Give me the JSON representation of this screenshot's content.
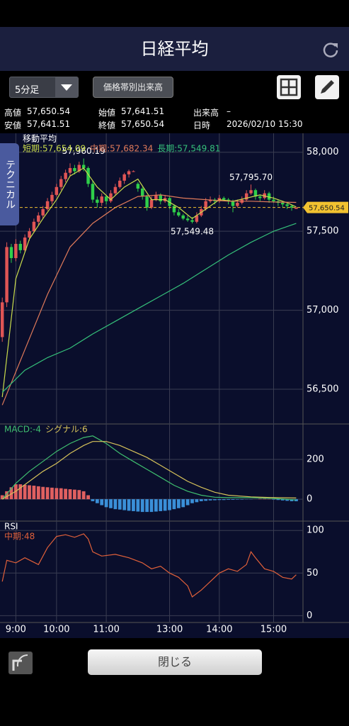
{
  "header": {
    "title": "日経平均"
  },
  "toolbar": {
    "period": "5分足",
    "volume_button": "価格帯別出来高"
  },
  "quote": {
    "rows": [
      [
        {
          "label": "高値",
          "value": "57,650.54"
        },
        {
          "label": "始値",
          "value": "57,641.51"
        },
        {
          "label": "出来高",
          "value": "–"
        }
      ],
      [
        {
          "label": "安値",
          "value": "57,641.51"
        },
        {
          "label": "終値",
          "value": "57,650.54"
        },
        {
          "label": "日時",
          "value": "2026/02/10 15:30"
        }
      ]
    ]
  },
  "side_tab": "テクニカル",
  "close_button": "閉じる",
  "chart_data": [
    {
      "type": "candlestick",
      "title": "移動平均",
      "up_color": "#e05555",
      "down_color": "#2fcf4a",
      "ohlc": [
        [
          56830,
          57080,
          56800,
          57050
        ],
        [
          57050,
          57430,
          57020,
          57400
        ],
        [
          57400,
          57420,
          57300,
          57330
        ],
        [
          57330,
          57450,
          57310,
          57420
        ],
        [
          57420,
          57440,
          57360,
          57380
        ],
        [
          57380,
          57480,
          57370,
          57460
        ],
        [
          57460,
          57520,
          57440,
          57500
        ],
        [
          57500,
          57580,
          57490,
          57560
        ],
        [
          57560,
          57620,
          57540,
          57600
        ],
        [
          57600,
          57660,
          57580,
          57640
        ],
        [
          57640,
          57710,
          57630,
          57690
        ],
        [
          57690,
          57750,
          57670,
          57730
        ],
        [
          57730,
          57800,
          57720,
          57780
        ],
        [
          57780,
          57850,
          57760,
          57830
        ],
        [
          57830,
          57890,
          57810,
          57870
        ],
        [
          57870,
          57930,
          57850,
          57900
        ],
        [
          57900,
          57920,
          57860,
          57880
        ],
        [
          57880,
          57940,
          57870,
          57920
        ],
        [
          57920,
          57960.19,
          57880,
          57900
        ],
        [
          57900,
          57910,
          57780,
          57800
        ],
        [
          57800,
          57820,
          57680,
          57700
        ],
        [
          57700,
          57720,
          57650,
          57680
        ],
        [
          57680,
          57740,
          57660,
          57720
        ],
        [
          57720,
          57730,
          57670,
          57690
        ],
        [
          57690,
          57760,
          57680,
          57740
        ],
        [
          57740,
          57800,
          57730,
          57780
        ],
        [
          57780,
          57840,
          57770,
          57820
        ],
        [
          57820,
          57870,
          57800,
          57860
        ],
        [
          57860,
          57890,
          57840,
          57880
        ],
        [
          57880,
          57885,
          57875,
          57880
        ],
        [
          57800,
          57810,
          57750,
          57770
        ],
        [
          57770,
          57780,
          57700,
          57720
        ],
        [
          57720,
          57730,
          57630,
          57650
        ],
        [
          57650,
          57720,
          57640,
          57700
        ],
        [
          57700,
          57750,
          57690,
          57730
        ],
        [
          57730,
          57740,
          57670,
          57690
        ],
        [
          57690,
          57730,
          57680,
          57710
        ],
        [
          57710,
          57720,
          57640,
          57660
        ],
        [
          57660,
          57670,
          57600,
          57620
        ],
        [
          57620,
          57640,
          57590,
          57600
        ],
        [
          57600,
          57610,
          57570,
          57580
        ],
        [
          57580,
          57600,
          57560,
          57570
        ],
        [
          57570,
          57590,
          57549.48,
          57560
        ],
        [
          57560,
          57620,
          57550,
          57600
        ],
        [
          57600,
          57660,
          57590,
          57640
        ],
        [
          57640,
          57710,
          57630,
          57690
        ],
        [
          57690,
          57720,
          57680,
          57700
        ],
        [
          57700,
          57710,
          57670,
          57690
        ],
        [
          57690,
          57730,
          57680,
          57710
        ],
        [
          57710,
          57720,
          57690,
          57700
        ],
        [
          57700,
          57710,
          57670,
          57690
        ],
        [
          57690,
          57700,
          57620,
          57660
        ],
        [
          57660,
          57700,
          57650,
          57680
        ],
        [
          57680,
          57720,
          57670,
          57700
        ],
        [
          57700,
          57760,
          57690,
          57740
        ],
        [
          57740,
          57795.7,
          57730,
          57760
        ],
        [
          57760,
          57770,
          57700,
          57720
        ],
        [
          57720,
          57730,
          57690,
          57710
        ],
        [
          57710,
          57760,
          57700,
          57740
        ],
        [
          57740,
          57750,
          57680,
          57700
        ],
        [
          57700,
          57720,
          57680,
          57690
        ],
        [
          57690,
          57700,
          57660,
          57680
        ],
        [
          57680,
          57690,
          57650,
          57670
        ],
        [
          57670,
          57680,
          57640,
          57660
        ],
        [
          57660,
          57670,
          57630,
          57650
        ],
        [
          57641.51,
          57650.54,
          57641.51,
          57650.54
        ]
      ],
      "series": [
        {
          "name": "短期:57,654.09",
          "color": "#c9dc4c",
          "x": [
            0,
            3,
            6,
            9,
            12,
            15,
            18,
            21,
            24,
            27,
            30,
            33,
            36,
            39,
            42,
            45,
            48,
            51,
            54,
            57,
            60,
            63,
            65
          ],
          "values": [
            56450,
            57200,
            57450,
            57580,
            57700,
            57850,
            57900,
            57780,
            57700,
            57780,
            57830,
            57700,
            57700,
            57650,
            57580,
            57640,
            57700,
            57690,
            57710,
            57730,
            57710,
            57680,
            57654.09
          ]
        },
        {
          "name": "中期:57,682.34",
          "color": "#e07a5a",
          "x": [
            0,
            5,
            10,
            15,
            20,
            25,
            30,
            35,
            40,
            45,
            50,
            55,
            60,
            65
          ],
          "values": [
            56400,
            56750,
            57100,
            57400,
            57550,
            57650,
            57720,
            57730,
            57710,
            57700,
            57690,
            57690,
            57685,
            57682.34
          ]
        },
        {
          "name": "長期:57,549.81",
          "color": "#35c07a",
          "x": [
            0,
            5,
            10,
            15,
            20,
            25,
            30,
            35,
            40,
            45,
            50,
            55,
            60,
            65
          ],
          "values": [
            56480,
            56620,
            56700,
            56760,
            56850,
            56930,
            57010,
            57090,
            57170,
            57260,
            57350,
            57430,
            57500,
            57549.81
          ]
        }
      ],
      "annotations": [
        {
          "label": "57,960.19",
          "value": 57960.19,
          "x": 18,
          "side": "above"
        },
        {
          "label": "57,795.70",
          "value": 57795.7,
          "x": 55,
          "side": "above"
        },
        {
          "label": "57,549.48",
          "value": 57549.48,
          "x": 42,
          "side": "below"
        }
      ],
      "last_price": {
        "label": "57,650.54",
        "value": 57650.54,
        "color": "#f2c230"
      },
      "xlim": [
        -0.5,
        66.5
      ],
      "ylim": [
        56280,
        58120
      ],
      "yticks": [
        {
          "value": 56500,
          "label": "56,500"
        },
        {
          "value": 57000,
          "label": "57,000"
        },
        {
          "value": 57500,
          "label": "57,500"
        },
        {
          "value": 58000,
          "label": "58,000"
        }
      ]
    },
    {
      "type": "macd",
      "series": [
        {
          "name": "MACD:-4",
          "color": "#3fbf6f",
          "x": [
            0,
            3,
            6,
            9,
            12,
            15,
            18,
            20,
            23,
            26,
            29,
            32,
            35,
            38,
            41,
            44,
            47,
            50,
            55,
            60,
            65
          ],
          "values": [
            0,
            80,
            140,
            190,
            240,
            280,
            310,
            318,
            280,
            230,
            190,
            150,
            110,
            70,
            40,
            20,
            10,
            8,
            8,
            4,
            -4
          ]
        },
        {
          "name": "シグナル:6",
          "color": "#d6c25a",
          "x": [
            0,
            3,
            6,
            9,
            12,
            15,
            18,
            20,
            23,
            26,
            29,
            32,
            35,
            38,
            41,
            44,
            47,
            50,
            55,
            60,
            65
          ],
          "values": [
            0,
            40,
            90,
            140,
            180,
            230,
            270,
            290,
            290,
            270,
            240,
            210,
            170,
            130,
            90,
            60,
            35,
            20,
            12,
            8,
            6
          ]
        }
      ],
      "histogram": {
        "up_color": "#e06060",
        "down_color": "#3a8fd8",
        "values": [
          20,
          40,
          60,
          75,
          75,
          72,
          70,
          68,
          65,
          62,
          60,
          58,
          56,
          55,
          52,
          50,
          48,
          46,
          40,
          20,
          -10,
          -20,
          -30,
          -40,
          -45,
          -50,
          -52,
          -55,
          -58,
          -60,
          -62,
          -64,
          -64,
          -64,
          -62,
          -60,
          -58,
          -55,
          -50,
          -45,
          -40,
          -30,
          -20,
          -15,
          -10,
          -8,
          -6,
          -5,
          -4,
          -4,
          -3,
          -3,
          -2,
          -2,
          -1,
          -1,
          0,
          2,
          2,
          1,
          -2,
          -4,
          -6,
          -8,
          -10,
          -10
        ]
      },
      "xlim": [
        -0.5,
        66.5
      ],
      "ylim": [
        -110,
        378
      ],
      "yticks": [
        0,
        200
      ]
    },
    {
      "type": "line",
      "title": "RSI",
      "series": [
        {
          "name": "中期:48",
          "color": "#e0603a",
          "x": [
            0,
            1,
            3,
            5,
            8,
            10,
            12,
            14,
            16,
            18,
            19,
            20,
            22,
            25,
            28,
            31,
            33,
            35,
            37,
            39,
            41,
            42,
            44,
            46,
            48,
            50,
            52,
            54,
            55,
            56,
            58,
            60,
            62,
            64,
            65
          ],
          "values": [
            40,
            65,
            62,
            68,
            60,
            80,
            93,
            95,
            92,
            96,
            90,
            75,
            70,
            72,
            68,
            62,
            55,
            58,
            50,
            45,
            35,
            22,
            30,
            40,
            50,
            55,
            52,
            60,
            75,
            68,
            55,
            52,
            45,
            43,
            48
          ]
        }
      ],
      "xlim": [
        -0.5,
        66.5
      ],
      "xticks": [
        {
          "value": 3,
          "label": "9:00"
        },
        {
          "value": 12,
          "label": "10:00"
        },
        {
          "value": 23,
          "label": "11:00"
        },
        {
          "value": 37,
          "label": "13:00"
        },
        {
          "value": 48,
          "label": "14:00"
        },
        {
          "value": 60,
          "label": "15:00"
        }
      ],
      "ylim": [
        -8,
        111
      ],
      "yticks": [
        0,
        50,
        100
      ]
    }
  ]
}
